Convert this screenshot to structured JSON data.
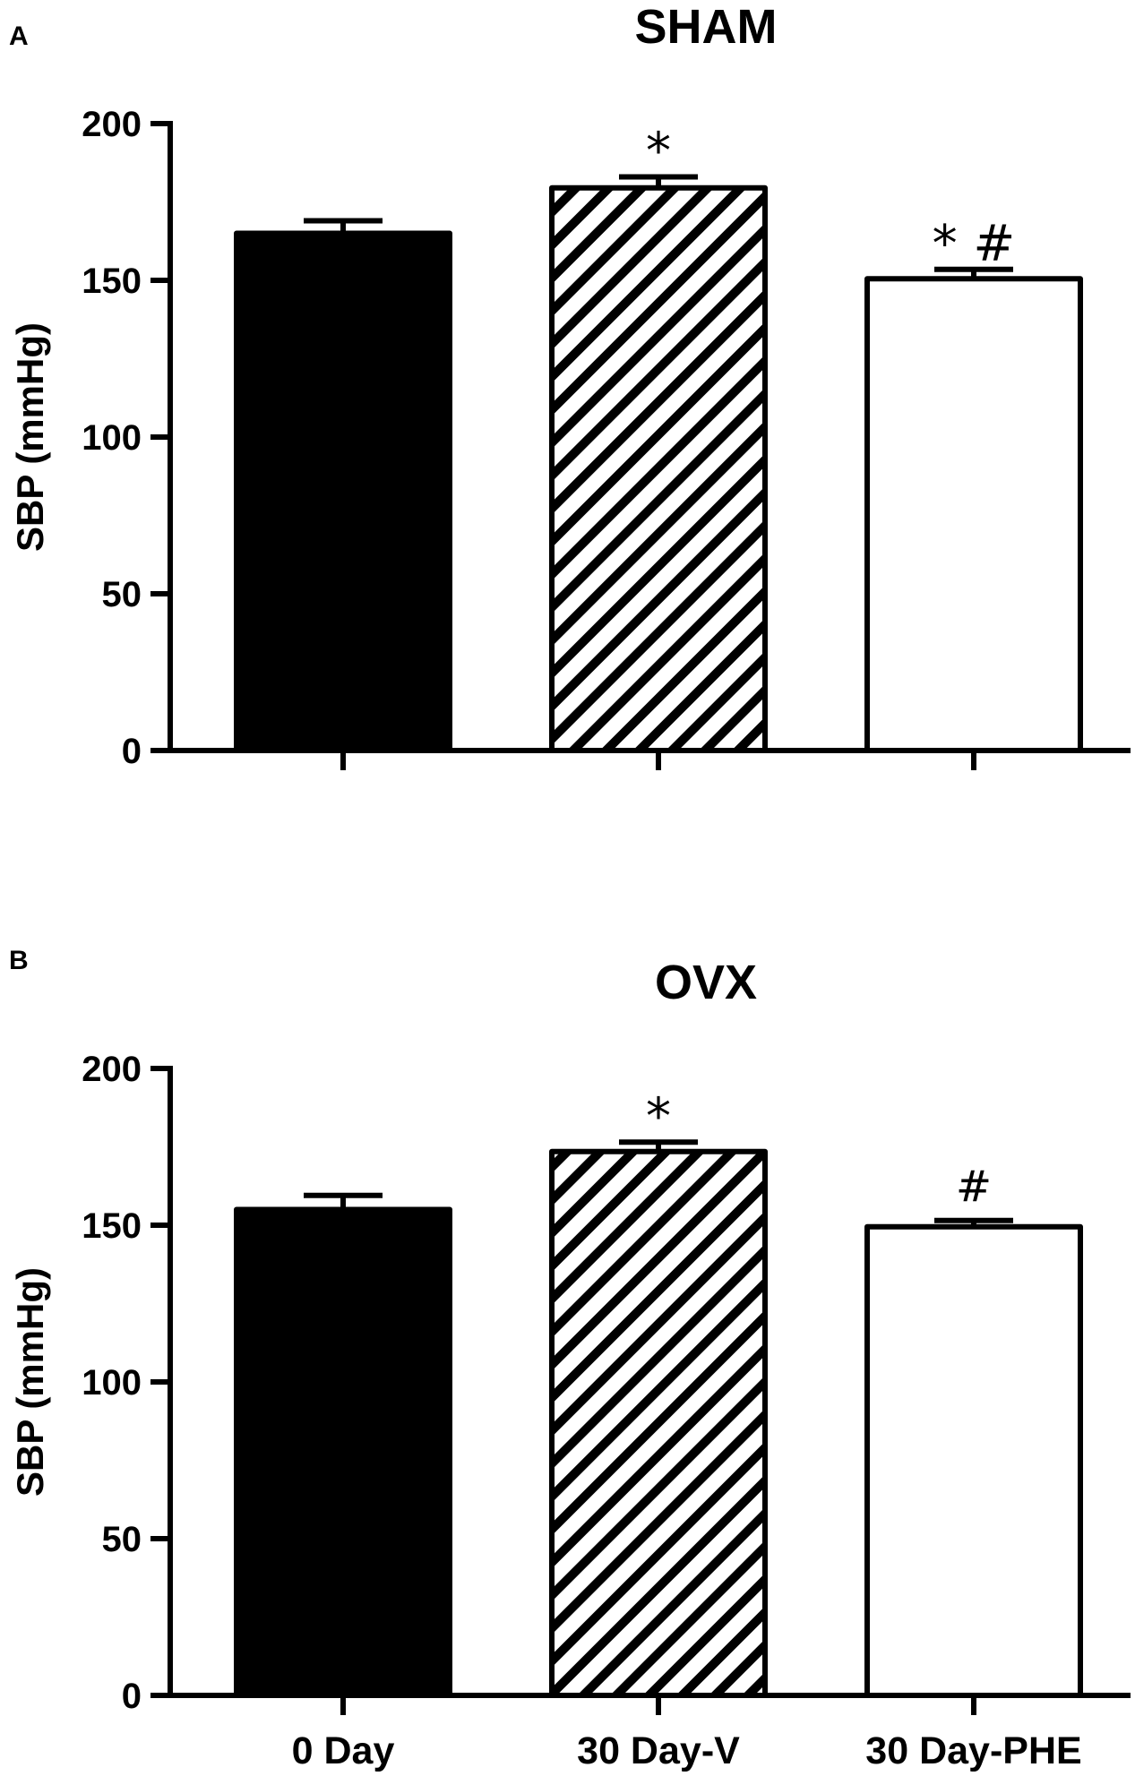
{
  "chart_data": [
    {
      "type": "bar",
      "panel_label": "A",
      "title": "SHAM",
      "ylabel": "SBP (mmHg)",
      "xlabel": "",
      "ylim": [
        0,
        200
      ],
      "yticks": [
        "0",
        "50",
        "100",
        "150",
        "200"
      ],
      "categories": [
        "0 Day",
        "30 Day-V",
        "30 Day-PHE"
      ],
      "show_category_labels": false,
      "values": [
        165,
        179.5,
        150.5
      ],
      "errors": [
        4,
        3.5,
        3
      ],
      "fills": [
        "solid",
        "hatched",
        "open"
      ],
      "annotations": [
        "",
        "*",
        "* #"
      ],
      "grid": false
    },
    {
      "type": "bar",
      "panel_label": "B",
      "title": "OVX",
      "ylabel": "SBP (mmHg)",
      "xlabel": "",
      "ylim": [
        0,
        200
      ],
      "yticks": [
        "0",
        "50",
        "100",
        "150",
        "200"
      ],
      "categories": [
        "0 Day",
        "30 Day-V",
        "30 Day-PHE"
      ],
      "show_category_labels": true,
      "values": [
        155,
        173.5,
        149.5
      ],
      "errors": [
        4.5,
        3,
        2
      ],
      "fills": [
        "solid",
        "hatched",
        "open"
      ],
      "annotations": [
        "",
        "*",
        "#"
      ],
      "grid": false
    }
  ]
}
